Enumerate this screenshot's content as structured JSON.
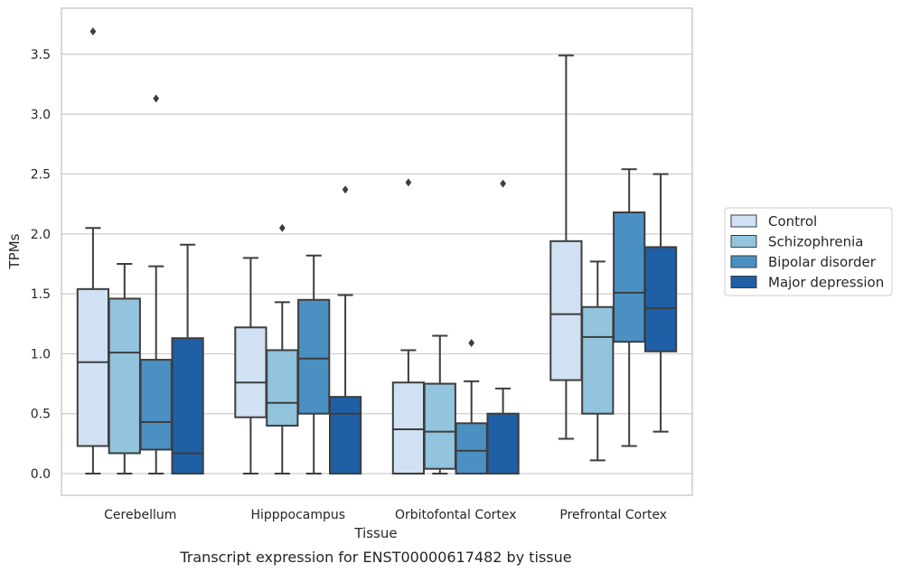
{
  "chart_data": {
    "type": "box",
    "caption": "Transcript expression for ENST00000617482 by tissue",
    "xlabel": "Tissue",
    "ylabel": "TPMs",
    "ylim": [
      -0.18,
      3.9
    ],
    "yticks": [
      "0.0",
      "0.5",
      "1.0",
      "1.5",
      "2.0",
      "2.5",
      "3.0",
      "3.5"
    ],
    "grid": true,
    "legend_position": "right",
    "categories": [
      "Cerebellum",
      "Hipppocampus",
      "Orbitofontal Cortex",
      "Prefrontal Cortex"
    ],
    "series": [
      {
        "name": "Control",
        "color": "#cfe1f2",
        "boxes": [
          {
            "whislo": 0.0,
            "q1": 0.23,
            "med": 0.93,
            "q3": 1.54,
            "whishi": 2.05,
            "fliers": [
              3.69
            ]
          },
          {
            "whislo": 0.0,
            "q1": 0.47,
            "med": 0.76,
            "q3": 1.22,
            "whishi": 1.8,
            "fliers": []
          },
          {
            "whislo": 0.0,
            "q1": 0.0,
            "med": 0.37,
            "q3": 0.76,
            "whishi": 1.03,
            "fliers": [
              2.43
            ]
          },
          {
            "whislo": 0.29,
            "q1": 0.78,
            "med": 1.33,
            "q3": 1.94,
            "whishi": 3.49,
            "fliers": []
          }
        ]
      },
      {
        "name": "Schizophrenia",
        "color": "#93c4de",
        "boxes": [
          {
            "whislo": 0.0,
            "q1": 0.17,
            "med": 1.01,
            "q3": 1.46,
            "whishi": 1.75,
            "fliers": []
          },
          {
            "whislo": 0.0,
            "q1": 0.4,
            "med": 0.59,
            "q3": 1.03,
            "whishi": 1.43,
            "fliers": [
              2.05
            ]
          },
          {
            "whislo": 0.0,
            "q1": 0.04,
            "med": 0.35,
            "q3": 0.75,
            "whishi": 1.15,
            "fliers": []
          },
          {
            "whislo": 0.11,
            "q1": 0.5,
            "med": 1.14,
            "q3": 1.39,
            "whishi": 1.77,
            "fliers": []
          }
        ]
      },
      {
        "name": "Bipolar disorder",
        "color": "#4a90c2",
        "boxes": [
          {
            "whislo": 0.0,
            "q1": 0.2,
            "med": 0.43,
            "q3": 0.95,
            "whishi": 1.73,
            "fliers": [
              3.13
            ]
          },
          {
            "whislo": 0.0,
            "q1": 0.5,
            "med": 0.96,
            "q3": 1.45,
            "whishi": 1.82,
            "fliers": []
          },
          {
            "whislo": 0.0,
            "q1": 0.0,
            "med": 0.19,
            "q3": 0.42,
            "whishi": 0.77,
            "fliers": [
              1.09
            ]
          },
          {
            "whislo": 0.23,
            "q1": 1.1,
            "med": 1.51,
            "q3": 2.18,
            "whishi": 2.54,
            "fliers": []
          }
        ]
      },
      {
        "name": "Major depression",
        "color": "#1f5fa6",
        "boxes": [
          {
            "whislo": 0.0,
            "q1": 0.0,
            "med": 0.17,
            "q3": 1.13,
            "whishi": 1.91,
            "fliers": []
          },
          {
            "whislo": 0.0,
            "q1": 0.0,
            "med": 0.5,
            "q3": 0.64,
            "whishi": 1.49,
            "fliers": [
              2.37
            ]
          },
          {
            "whislo": 0.0,
            "q1": 0.0,
            "med": 0.0,
            "q3": 0.5,
            "whishi": 0.71,
            "fliers": [
              2.42
            ]
          },
          {
            "whislo": 0.35,
            "q1": 1.02,
            "med": 1.38,
            "q3": 1.89,
            "whishi": 2.5,
            "fliers": []
          }
        ]
      }
    ]
  }
}
